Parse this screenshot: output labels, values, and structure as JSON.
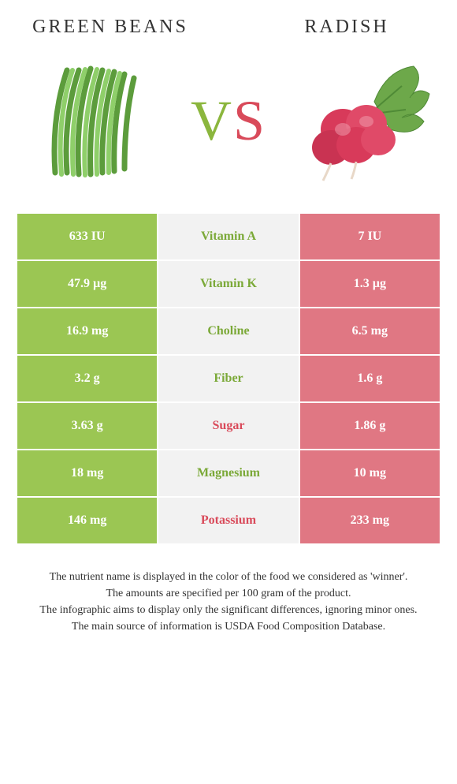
{
  "header": {
    "left_title": "GREEN BEANS",
    "right_title": "RADISH",
    "vs_v": "V",
    "vs_s": "S"
  },
  "colors": {
    "left_cell_bg": "#9bc653",
    "right_cell_bg": "#e07783",
    "mid_cell_bg": "#f2f2f2",
    "left_text": "#ffffff",
    "right_text": "#ffffff",
    "nutrient_green": "#7ba938",
    "nutrient_red": "#d94a5a",
    "vs_green": "#8bb63d",
    "vs_red": "#d94a5a",
    "bean_fill": "#7fbf5a",
    "bean_stroke": "#5c9c3c",
    "radish_body": "#d83a5a",
    "radish_leaf": "#6da84a",
    "radish_root": "#e8d8c8"
  },
  "table": {
    "rows": [
      {
        "left": "633 IU",
        "name": "Vitamin A",
        "right": "7 IU",
        "winner": "green"
      },
      {
        "left": "47.9 µg",
        "name": "Vitamin K",
        "right": "1.3 µg",
        "winner": "green"
      },
      {
        "left": "16.9 mg",
        "name": "Choline",
        "right": "6.5 mg",
        "winner": "green"
      },
      {
        "left": "3.2 g",
        "name": "Fiber",
        "right": "1.6 g",
        "winner": "green"
      },
      {
        "left": "3.63 g",
        "name": "Sugar",
        "right": "1.86 g",
        "winner": "red"
      },
      {
        "left": "18 mg",
        "name": "Magnesium",
        "right": "10 mg",
        "winner": "green"
      },
      {
        "left": "146 mg",
        "name": "Potassium",
        "right": "233 mg",
        "winner": "red"
      }
    ]
  },
  "footnotes": [
    "The nutrient name is displayed in the color of the food we considered as 'winner'.",
    "The amounts are specified per 100 gram of the product.",
    "The infographic aims to display only the significant differences, ignoring minor ones.",
    "The main source of information is USDA Food Composition Database."
  ]
}
